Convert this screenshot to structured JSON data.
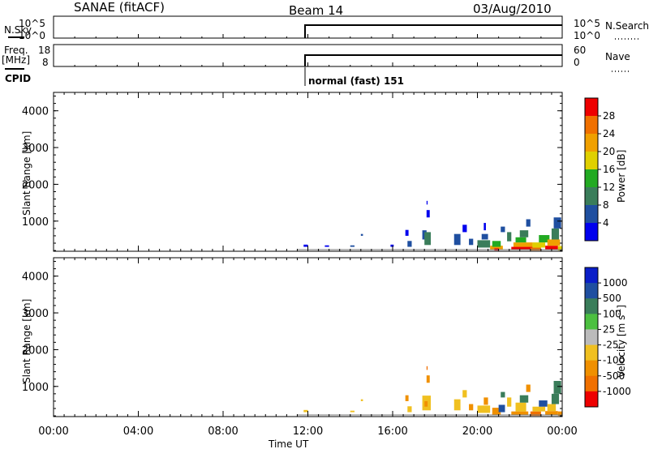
{
  "header": {
    "title": "SANAE (fitACF)",
    "beam": "Beam 14",
    "date": "03/Aug/2010"
  },
  "top_panels": {
    "nsky_label": "N.Sky",
    "nsky_ticks": [
      "10^5",
      "10^0"
    ],
    "nsearch_label": "N.Search",
    "nsearch_ticks": [
      "10^5",
      "10^0"
    ],
    "freq_label": "Freq.",
    "freq_unit": "[MHz]",
    "freq_ticks": [
      "18",
      "8"
    ],
    "nave_label": "Nave",
    "nave_ticks": [
      "60",
      "0"
    ],
    "cpid_label": "CPID",
    "cpid_value": "normal (fast) 151",
    "data_start_hour": 11.5
  },
  "colors": {
    "power": [
      "#0000ee",
      "#1f4fa0",
      "#3a7d5a",
      "#22aa22",
      "#e0d000",
      "#f0a000",
      "#f07000",
      "#ee0000"
    ],
    "velocity": [
      "#0a1ec8",
      "#1f4fa0",
      "#3a7d5a",
      "#4cc040",
      "#bbbbbb",
      "#f0c020",
      "#f09000",
      "#f07000",
      "#ee0000"
    ],
    "line": "#000000"
  },
  "chart_data": [
    {
      "type": "heatmap",
      "panel": "power",
      "xlabel": "",
      "ylabel": "Slant Range [km]",
      "xlim": [
        0,
        24
      ],
      "ylim": [
        180,
        4500
      ],
      "y_ticks": [
        "1000",
        "2000",
        "3000",
        "4000"
      ],
      "y_tick_values": [
        1000,
        2000,
        3000,
        4000
      ],
      "colorbar_label": "Power [dB]",
      "colorbar_ticks": [
        "4",
        "8",
        "12",
        "16",
        "20",
        "24",
        "28"
      ],
      "colorbar_range": [
        0,
        30
      ],
      "patches": [
        {
          "x": [
            11.8,
            12.0
          ],
          "y": [
            300,
            360
          ],
          "c": 0
        },
        {
          "x": [
            12.8,
            13.0
          ],
          "y": [
            300,
            340
          ],
          "c": 0
        },
        {
          "x": [
            14.0,
            14.2
          ],
          "y": [
            300,
            340
          ],
          "c": 1
        },
        {
          "x": [
            14.5,
            14.6
          ],
          "y": [
            600,
            650
          ],
          "c": 1
        },
        {
          "x": [
            15.9,
            16.05
          ],
          "y": [
            300,
            360
          ],
          "c": 0
        },
        {
          "x": [
            16.6,
            16.75
          ],
          "y": [
            600,
            760
          ],
          "c": 0
        },
        {
          "x": [
            16.7,
            16.9
          ],
          "y": [
            300,
            460
          ],
          "c": 1
        },
        {
          "x": [
            17.4,
            17.6
          ],
          "y": [
            500,
            750
          ],
          "c": 1
        },
        {
          "x": [
            17.5,
            17.8
          ],
          "y": [
            350,
            700
          ],
          "c": 2
        },
        {
          "x": [
            17.6,
            17.75
          ],
          "y": [
            1100,
            1300
          ],
          "c": 0
        },
        {
          "x": [
            17.6,
            17.65
          ],
          "y": [
            1450,
            1550
          ],
          "c": 0
        },
        {
          "x": [
            18.9,
            19.2
          ],
          "y": [
            350,
            650
          ],
          "c": 1
        },
        {
          "x": [
            19.3,
            19.5
          ],
          "y": [
            700,
            900
          ],
          "c": 0
        },
        {
          "x": [
            19.6,
            19.8
          ],
          "y": [
            350,
            520
          ],
          "c": 1
        },
        {
          "x": [
            20.0,
            20.6
          ],
          "y": [
            280,
            480
          ],
          "c": 2
        },
        {
          "x": [
            20.2,
            20.5
          ],
          "y": [
            500,
            650
          ],
          "c": 1
        },
        {
          "x": [
            20.3,
            20.4
          ],
          "y": [
            750,
            950
          ],
          "c": 0
        },
        {
          "x": [
            20.6,
            21.2
          ],
          "y": [
            230,
            330
          ],
          "c": 5
        },
        {
          "x": [
            20.7,
            21.1
          ],
          "y": [
            300,
            460
          ],
          "c": 3
        },
        {
          "x": [
            20.8,
            21.0
          ],
          "y": [
            200,
            260
          ],
          "c": 7
        },
        {
          "x": [
            21.1,
            21.3
          ],
          "y": [
            700,
            850
          ],
          "c": 1
        },
        {
          "x": [
            21.4,
            21.6
          ],
          "y": [
            450,
            700
          ],
          "c": 2
        },
        {
          "x": [
            21.6,
            22.6
          ],
          "y": [
            220,
            300
          ],
          "c": 7
        },
        {
          "x": [
            21.7,
            22.6
          ],
          "y": [
            300,
            420
          ],
          "c": 5
        },
        {
          "x": [
            21.8,
            22.3
          ],
          "y": [
            420,
            560
          ],
          "c": 3
        },
        {
          "x": [
            22.0,
            22.4
          ],
          "y": [
            560,
            750
          ],
          "c": 2
        },
        {
          "x": [
            22.3,
            22.5
          ],
          "y": [
            850,
            1050
          ],
          "c": 1
        },
        {
          "x": [
            22.5,
            23.0
          ],
          "y": [
            200,
            280
          ],
          "c": 6
        },
        {
          "x": [
            22.6,
            23.2
          ],
          "y": [
            280,
            420
          ],
          "c": 4
        },
        {
          "x": [
            22.9,
            23.4
          ],
          "y": [
            420,
            620
          ],
          "c": 3
        },
        {
          "x": [
            23.2,
            23.8
          ],
          "y": [
            220,
            330
          ],
          "c": 7
        },
        {
          "x": [
            23.3,
            23.9
          ],
          "y": [
            330,
            500
          ],
          "c": 5
        },
        {
          "x": [
            23.5,
            23.85
          ],
          "y": [
            500,
            800
          ],
          "c": 2
        },
        {
          "x": [
            23.6,
            23.95
          ],
          "y": [
            800,
            1100
          ],
          "c": 1
        },
        {
          "x": [
            23.8,
            24.0
          ],
          "y": [
            200,
            320
          ],
          "c": 4
        }
      ]
    },
    {
      "type": "heatmap",
      "panel": "velocity",
      "xlabel": "Time UT",
      "ylabel": "Slant Range [km]",
      "xlim": [
        0,
        24
      ],
      "ylim": [
        180,
        4500
      ],
      "x_ticks": [
        "00:00",
        "04:00",
        "08:00",
        "12:00",
        "16:00",
        "20:00",
        "00:00"
      ],
      "x_tick_values": [
        0,
        4,
        8,
        12,
        16,
        20,
        24
      ],
      "y_ticks": [
        "1000",
        "2000",
        "3000",
        "4000"
      ],
      "y_tick_values": [
        1000,
        2000,
        3000,
        4000
      ],
      "colorbar_label": "Velocity [m s^-1]",
      "colorbar_ticks": [
        "1000",
        "500",
        "100",
        "25",
        "-25",
        "-100",
        "-500",
        "-1000"
      ],
      "patches": [
        {
          "x": [
            11.8,
            12.0
          ],
          "y": [
            300,
            360
          ],
          "c": 5
        },
        {
          "x": [
            14.0,
            14.2
          ],
          "y": [
            300,
            340
          ],
          "c": 5
        },
        {
          "x": [
            14.5,
            14.6
          ],
          "y": [
            600,
            650
          ],
          "c": 5
        },
        {
          "x": [
            16.7,
            16.9
          ],
          "y": [
            300,
            460
          ],
          "c": 5
        },
        {
          "x": [
            16.6,
            16.75
          ],
          "y": [
            600,
            760
          ],
          "c": 6
        },
        {
          "x": [
            17.4,
            17.8
          ],
          "y": [
            350,
            750
          ],
          "c": 5
        },
        {
          "x": [
            17.5,
            17.65
          ],
          "y": [
            450,
            600
          ],
          "c": 6
        },
        {
          "x": [
            17.6,
            17.75
          ],
          "y": [
            1100,
            1300
          ],
          "c": 6
        },
        {
          "x": [
            17.6,
            17.65
          ],
          "y": [
            1450,
            1550
          ],
          "c": 7
        },
        {
          "x": [
            18.9,
            19.2
          ],
          "y": [
            350,
            650
          ],
          "c": 5
        },
        {
          "x": [
            19.3,
            19.5
          ],
          "y": [
            700,
            900
          ],
          "c": 5
        },
        {
          "x": [
            19.6,
            19.8
          ],
          "y": [
            350,
            520
          ],
          "c": 6
        },
        {
          "x": [
            20.0,
            20.6
          ],
          "y": [
            280,
            480
          ],
          "c": 5
        },
        {
          "x": [
            20.3,
            20.5
          ],
          "y": [
            500,
            700
          ],
          "c": 6
        },
        {
          "x": [
            20.7,
            21.1
          ],
          "y": [
            220,
            420
          ],
          "c": 6
        },
        {
          "x": [
            21.0,
            21.3
          ],
          "y": [
            300,
            500
          ],
          "c": 1
        },
        {
          "x": [
            21.1,
            21.3
          ],
          "y": [
            700,
            850
          ],
          "c": 2
        },
        {
          "x": [
            21.4,
            21.6
          ],
          "y": [
            450,
            700
          ],
          "c": 5
        },
        {
          "x": [
            21.6,
            22.4
          ],
          "y": [
            220,
            320
          ],
          "c": 6
        },
        {
          "x": [
            21.8,
            22.3
          ],
          "y": [
            320,
            560
          ],
          "c": 5
        },
        {
          "x": [
            22.0,
            22.4
          ],
          "y": [
            560,
            760
          ],
          "c": 2
        },
        {
          "x": [
            22.3,
            22.5
          ],
          "y": [
            850,
            1050
          ],
          "c": 6
        },
        {
          "x": [
            22.5,
            23.0
          ],
          "y": [
            200,
            320
          ],
          "c": 7
        },
        {
          "x": [
            22.6,
            23.2
          ],
          "y": [
            320,
            450
          ],
          "c": 5
        },
        {
          "x": [
            22.9,
            23.3
          ],
          "y": [
            450,
            620
          ],
          "c": 1
        },
        {
          "x": [
            23.2,
            23.8
          ],
          "y": [
            220,
            330
          ],
          "c": 6
        },
        {
          "x": [
            23.3,
            23.7
          ],
          "y": [
            330,
            520
          ],
          "c": 5
        },
        {
          "x": [
            23.5,
            23.85
          ],
          "y": [
            520,
            800
          ],
          "c": 2
        },
        {
          "x": [
            23.6,
            23.95
          ],
          "y": [
            800,
            1150
          ],
          "c": 2
        },
        {
          "x": [
            23.8,
            24.0
          ],
          "y": [
            200,
            320
          ],
          "c": 6
        }
      ]
    }
  ]
}
